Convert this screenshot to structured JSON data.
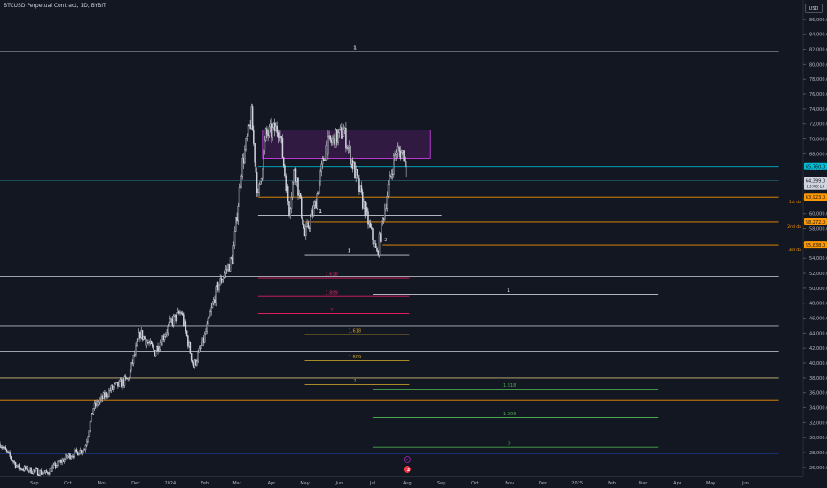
{
  "title": "BTCUSD Perpetual Contract, 1D, BYBIT",
  "currency": "USD",
  "colors": {
    "bg": "#131722",
    "candle": "#d1d4dc",
    "cyan": "#00bcd4",
    "orange": "#ff9800",
    "white": "#d1d4dc",
    "blue": "#2962ff",
    "magenta": "#e040fb",
    "pink": "#e91e63",
    "gold": "#c9a227",
    "green": "#4caf50"
  },
  "icons": [
    "lightning-icon",
    "calendar-event-icon"
  ],
  "event_badge": "3",
  "chart_data": {
    "type": "candlestick",
    "symbol": "BTCUSD Perpetual Contract, 1D, BYBIT",
    "ylim": [
      24800,
      88600
    ],
    "xlim": [
      "2023-08-01",
      "2025-07-01"
    ],
    "y_ticks": [
      "26,000.0",
      "28,000.0",
      "30,000.0",
      "32,000.0",
      "34,000.0",
      "36,000.0",
      "38,000.0",
      "40,000.0",
      "42,000.0",
      "44,000.0",
      "46,000.0",
      "48,000.0",
      "50,000.0",
      "52,000.0",
      "54,000.0",
      "56,000.0",
      "58,000.0",
      "60,000.0",
      "62,000.0",
      "64,000.0",
      "66,000.0",
      "68,000.0",
      "70,000.0",
      "72,000.0",
      "74,000.0",
      "76,000.0",
      "78,000.0",
      "80,000.0",
      "82,000.0",
      "84,000.0",
      "86,000.0"
    ],
    "x_ticks": [
      {
        "label": "Sep",
        "date": "2023-09-01"
      },
      {
        "label": "Oct",
        "date": "2023-10-01"
      },
      {
        "label": "Nov",
        "date": "2023-11-01"
      },
      {
        "label": "Dec",
        "date": "2023-12-01"
      },
      {
        "label": "2024",
        "date": "2024-01-01"
      },
      {
        "label": "Feb",
        "date": "2024-02-01"
      },
      {
        "label": "Mar",
        "date": "2024-03-01"
      },
      {
        "label": "Apr",
        "date": "2024-04-01"
      },
      {
        "label": "May",
        "date": "2024-05-01"
      },
      {
        "label": "Jun",
        "date": "2024-06-01"
      },
      {
        "label": "Jul",
        "date": "2024-07-01"
      },
      {
        "label": "Aug",
        "date": "2024-08-01"
      },
      {
        "label": "Sep",
        "date": "2024-09-01"
      },
      {
        "label": "Oct",
        "date": "2024-10-01"
      },
      {
        "label": "Nov",
        "date": "2024-11-01"
      },
      {
        "label": "Dec",
        "date": "2024-12-01"
      },
      {
        "label": "2025",
        "date": "2025-01-01"
      },
      {
        "label": "Feb",
        "date": "2025-02-01"
      },
      {
        "label": "Mar",
        "date": "2025-03-01"
      },
      {
        "label": "Apr",
        "date": "2025-04-01"
      },
      {
        "label": "May",
        "date": "2025-05-01"
      },
      {
        "label": "Jun",
        "date": "2025-06-01"
      }
    ],
    "price_path": [
      [
        "2023-08-01",
        29200
      ],
      [
        "2023-08-17",
        26000
      ],
      [
        "2023-09-11",
        25200
      ],
      [
        "2023-10-01",
        27500
      ],
      [
        "2023-10-16",
        28500
      ],
      [
        "2023-10-24",
        34000
      ],
      [
        "2023-11-09",
        36500
      ],
      [
        "2023-11-24",
        37800
      ],
      [
        "2023-12-05",
        44000
      ],
      [
        "2023-12-18",
        41500
      ],
      [
        "2024-01-02",
        45500
      ],
      [
        "2024-01-11",
        46800
      ],
      [
        "2024-01-22",
        39500
      ],
      [
        "2024-01-31",
        43000
      ],
      [
        "2024-02-12",
        50000
      ],
      [
        "2024-02-26",
        54000
      ],
      [
        "2024-03-05",
        66000
      ],
      [
        "2024-03-14",
        73000
      ],
      [
        "2024-03-20",
        62000
      ],
      [
        "2024-03-27",
        70500
      ],
      [
        "2024-04-08",
        71500
      ],
      [
        "2024-04-17",
        60500
      ],
      [
        "2024-04-22",
        66500
      ],
      [
        "2024-05-01",
        57000
      ],
      [
        "2024-05-10",
        61000
      ],
      [
        "2024-05-20",
        69000
      ],
      [
        "2024-06-05",
        71000
      ],
      [
        "2024-06-24",
        60500
      ],
      [
        "2024-07-05",
        54500
      ],
      [
        "2024-07-15",
        63500
      ],
      [
        "2024-07-22",
        68500
      ],
      [
        "2024-07-29",
        68000
      ],
      [
        "2024-08-01",
        64300
      ]
    ],
    "last_price": "64,399.0",
    "last_price_value": 64399,
    "countdown": "13:48:13",
    "consolidation_box": {
      "from": "2024-03-24",
      "to": "2024-08-22",
      "low": 67400,
      "high": 71200
    },
    "levels": [
      {
        "price": 81700,
        "from": "2023-08-01",
        "to": "2025-07-01",
        "color": "white",
        "label": "1",
        "label_date": "2024-06-15"
      },
      {
        "price": 66300,
        "from": "2024-03-20",
        "to": "2025-07-01",
        "color": "cyan",
        "tag": "65,760.0"
      },
      {
        "price": 64400,
        "from": "2023-08-01",
        "to": "2025-07-01",
        "color": "cyan_dim"
      },
      {
        "price": 62200,
        "from": "2024-03-20",
        "to": "2025-07-01",
        "color": "orange",
        "tag": "63,923.0",
        "note": "1st dp"
      },
      {
        "price": 58900,
        "from": "2024-05-01",
        "to": "2025-07-01",
        "color": "orange",
        "tag": "58,272.0",
        "note": "2nd dp"
      },
      {
        "price": 55800,
        "from": "2024-07-10",
        "to": "2025-07-01",
        "color": "orange",
        "tag": "55,838.0",
        "note": "3rd dp"
      },
      {
        "price": 59800,
        "from": "2024-03-20",
        "to": "2024-09-01",
        "color": "white",
        "label": "1",
        "label_date": "2024-05-15"
      },
      {
        "price": 54500,
        "from": "2024-05-01",
        "to": "2024-08-03",
        "color": "white",
        "label": "1",
        "label_date": "2024-06-10"
      },
      {
        "price": 51600,
        "from": "2023-08-01",
        "to": "2025-07-01",
        "color": "white"
      },
      {
        "price": 51400,
        "from": "2024-03-20",
        "to": "2024-08-03",
        "color": "pink",
        "label": "1.618",
        "label_date": "2024-05-25"
      },
      {
        "price": 49200,
        "from": "2024-07-01",
        "to": "2025-03-15",
        "color": "white",
        "label": "1",
        "label_date": "2024-10-31"
      },
      {
        "price": 48900,
        "from": "2024-03-20",
        "to": "2024-08-03",
        "color": "pink",
        "label": "1.809",
        "label_date": "2024-05-25"
      },
      {
        "price": 46600,
        "from": "2024-03-20",
        "to": "2024-08-03",
        "color": "pink",
        "label": "2",
        "label_date": "2024-05-25"
      },
      {
        "price": 45000,
        "from": "2023-08-01",
        "to": "2025-07-01",
        "color": "white"
      },
      {
        "price": 43800,
        "from": "2024-05-01",
        "to": "2024-08-03",
        "color": "gold",
        "label": "1.618",
        "label_date": "2024-06-15"
      },
      {
        "price": 41500,
        "from": "2023-08-01",
        "to": "2025-07-01",
        "color": "white"
      },
      {
        "price": 40300,
        "from": "2024-05-01",
        "to": "2024-08-03",
        "color": "gold",
        "label": "1.809",
        "label_date": "2024-06-15"
      },
      {
        "price": 38000,
        "from": "2023-08-01",
        "to": "2025-07-01",
        "color": "gold_light"
      },
      {
        "price": 37100,
        "from": "2024-05-01",
        "to": "2024-08-03",
        "color": "gold",
        "label": "2",
        "label_date": "2024-06-15"
      },
      {
        "price": 36500,
        "from": "2024-07-01",
        "to": "2025-03-15",
        "color": "green",
        "label": "1.618",
        "label_date": "2024-11-01"
      },
      {
        "price": 35000,
        "from": "2023-08-01",
        "to": "2025-07-01",
        "color": "orange"
      },
      {
        "price": 32700,
        "from": "2024-07-01",
        "to": "2025-03-15",
        "color": "green",
        "label": "1.809",
        "label_date": "2024-11-01"
      },
      {
        "price": 28700,
        "from": "2024-07-01",
        "to": "2025-03-15",
        "color": "green",
        "label": "2",
        "label_date": "2024-11-01"
      },
      {
        "price": 27900,
        "from": "2023-08-01",
        "to": "2025-07-01",
        "color": "blue"
      }
    ],
    "markers": [
      {
        "date": "2024-07-10",
        "price": 56300,
        "label": "2"
      }
    ],
    "event_date": "2024-08-01"
  }
}
